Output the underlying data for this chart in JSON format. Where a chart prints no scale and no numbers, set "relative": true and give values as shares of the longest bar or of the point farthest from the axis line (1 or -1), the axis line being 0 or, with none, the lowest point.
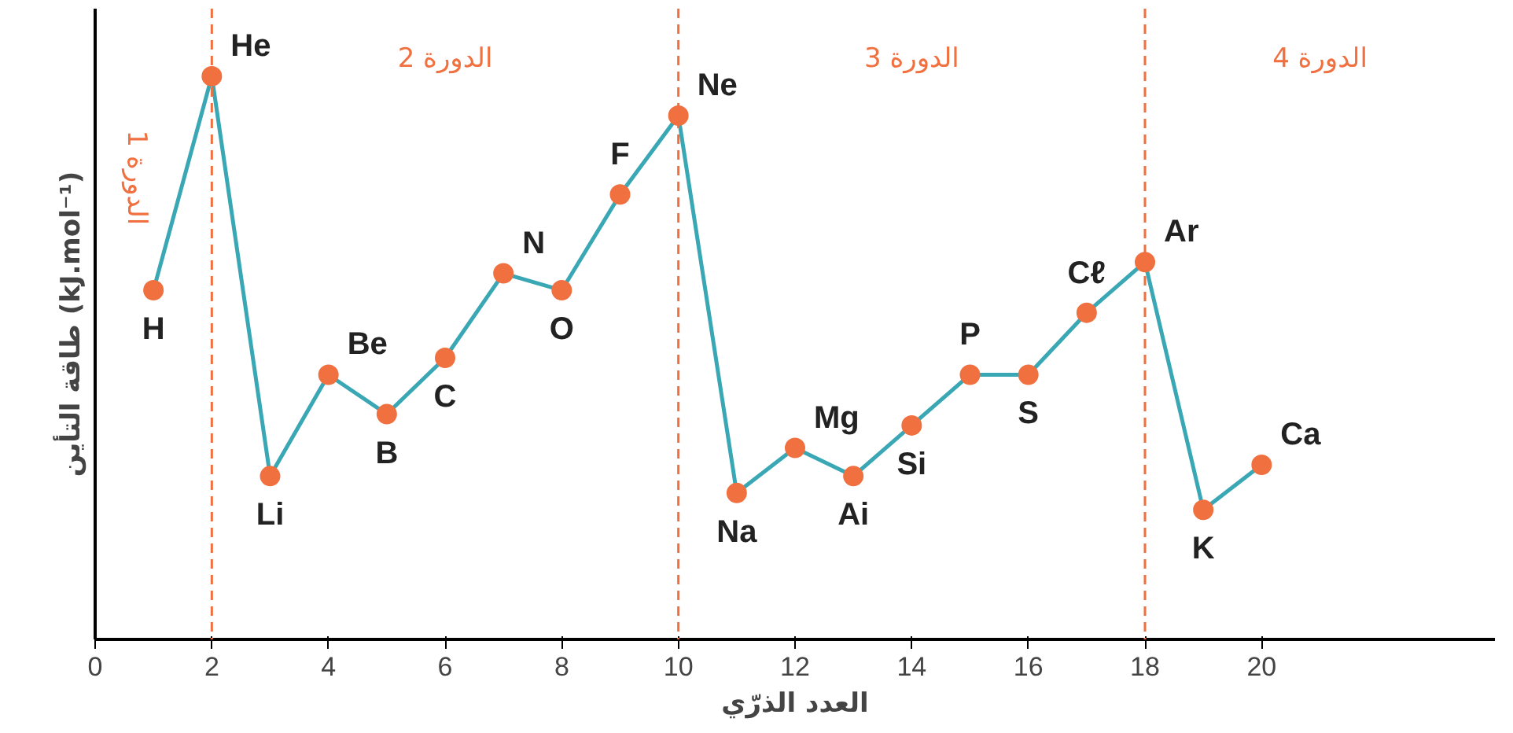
{
  "chart_data": {
    "type": "line",
    "relative": true,
    "xlabel": "العدد الذرّي",
    "ylabel": "طاقة التأين (kJ.mol⁻¹)",
    "x": [
      1,
      2,
      3,
      4,
      5,
      6,
      7,
      8,
      9,
      10,
      11,
      12,
      13,
      14,
      15,
      16,
      17,
      18,
      19,
      20
    ],
    "series": [
      {
        "color": "#3aa7b5",
        "colors": [
          "#f07040",
          "#f07040",
          "#f07040",
          "#f07040",
          "#f07040",
          "#f07040",
          "#f07040",
          "#f07040",
          "#f07040",
          "#f07040",
          "#f07040",
          "#f07040",
          "#f07040",
          "#f07040",
          "#f07040",
          "#f07040",
          "#f07040",
          "#f07040",
          "#f07040",
          "#f07040"
        ],
        "values": [
          0.62,
          1,
          0.29,
          0.47,
          0.4,
          0.5,
          0.65,
          0.62,
          0.79,
          0.93,
          0.26,
          0.34,
          0.29,
          0.38,
          0.47,
          0.47,
          0.58,
          0.67,
          0.23,
          0.31
        ]
      }
    ],
    "marker": "circle",
    "grid": false,
    "xlim": [
      0,
      24
    ],
    "xticks": [
      0,
      2,
      4,
      6,
      8,
      10,
      12,
      14,
      16,
      18,
      20
    ],
    "ref_lines": [
      {
        "axis": "x",
        "value": 2,
        "color": "#f07040",
        "line_style": "dashed"
      },
      {
        "axis": "x",
        "value": 10,
        "color": "#f07040",
        "line_style": "dashed"
      },
      {
        "axis": "x",
        "value": 18,
        "color": "#f07040",
        "line_style": "dashed"
      }
    ],
    "annotations": [
      {
        "text": "H",
        "x": 1,
        "y": 0.62
      },
      {
        "text": "He",
        "x": 2,
        "y": 1
      },
      {
        "text": "Li",
        "x": 3,
        "y": 0.29
      },
      {
        "text": "Be",
        "x": 4,
        "y": 0.47
      },
      {
        "text": "B",
        "x": 5,
        "y": 0.4
      },
      {
        "text": "C",
        "x": 6,
        "y": 0.5
      },
      {
        "text": "N",
        "x": 7,
        "y": 0.65
      },
      {
        "text": "O",
        "x": 8,
        "y": 0.62
      },
      {
        "text": "F",
        "x": 9,
        "y": 0.79
      },
      {
        "text": "Ne",
        "x": 10,
        "y": 0.93
      },
      {
        "text": "Na",
        "x": 11,
        "y": 0.26
      },
      {
        "text": "Mg",
        "x": 12,
        "y": 0.34
      },
      {
        "text": "Ai",
        "x": 13,
        "y": 0.29
      },
      {
        "text": "Si",
        "x": 14,
        "y": 0.38
      },
      {
        "text": "P",
        "x": 15,
        "y": 0.47
      },
      {
        "text": "S",
        "x": 16,
        "y": 0.47
      },
      {
        "text": "Cℓ",
        "x": 17,
        "y": 0.58
      },
      {
        "text": "Ar",
        "x": 18,
        "y": 0.67
      },
      {
        "text": "K",
        "x": 19,
        "y": 0.23
      },
      {
        "text": "Ca",
        "x": 20,
        "y": 0.31
      },
      "الدورة 1",
      "الدورة 2",
      "الدورة 3",
      "الدورة 4"
    ]
  }
}
